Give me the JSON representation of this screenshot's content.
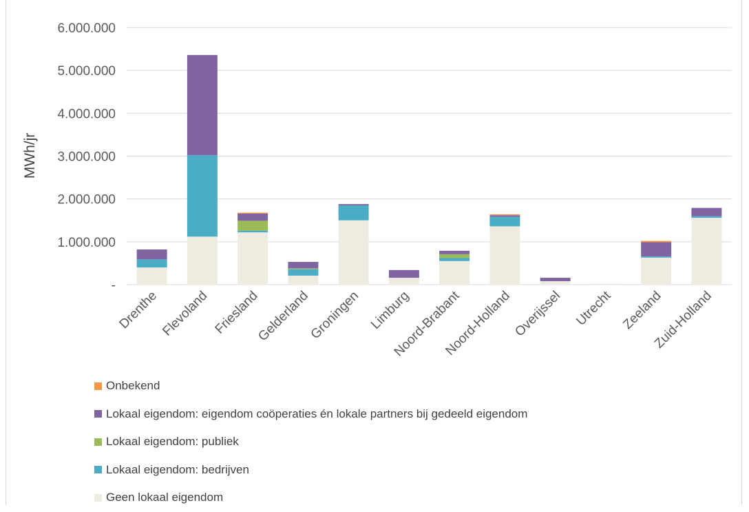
{
  "chart_data": {
    "type": "bar",
    "stacked": true,
    "title": "",
    "xlabel": "",
    "ylabel": "MWh/jr",
    "ylim": [
      0,
      6000000
    ],
    "y_ticks": [
      {
        "value": 0,
        "label": "-"
      },
      {
        "value": 1000000,
        "label": "1.000.000"
      },
      {
        "value": 2000000,
        "label": "2.000.000"
      },
      {
        "value": 3000000,
        "label": "3.000.000"
      },
      {
        "value": 4000000,
        "label": "4.000.000"
      },
      {
        "value": 5000000,
        "label": "5.000.000"
      },
      {
        "value": 6000000,
        "label": "6.000.000"
      }
    ],
    "grid": true,
    "legend_position": "bottom",
    "categories": [
      "Drenthe",
      "Flevoland",
      "Friesland",
      "Gelderland",
      "Groningen",
      "Limburg",
      "Noord-Brabant",
      "Noord-Holland",
      "Overijssel",
      "Utrecht",
      "Zeeland",
      "Zuid-Holland"
    ],
    "series": [
      {
        "name": "Geen lokaal eigendom",
        "color": "#eeece1",
        "values": [
          400000,
          1120000,
          1220000,
          210000,
          1500000,
          160000,
          550000,
          1360000,
          80000,
          20000,
          630000,
          1560000
        ]
      },
      {
        "name": "Lokaal eigendom: bedrijven",
        "color": "#4bacc6",
        "values": [
          190000,
          1900000,
          40000,
          150000,
          350000,
          0,
          70000,
          220000,
          0,
          0,
          30000,
          40000
        ]
      },
      {
        "name": "Lokaal eigendom: publiek",
        "color": "#9bbb59",
        "values": [
          0,
          0,
          230000,
          20000,
          0,
          0,
          90000,
          0,
          0,
          0,
          0,
          0
        ]
      },
      {
        "name": "Lokaal eigendom: eigendom coöperaties én lokale partners bij gedeeld eigendom",
        "color": "#8064a2",
        "values": [
          230000,
          2340000,
          170000,
          150000,
          30000,
          180000,
          80000,
          40000,
          80000,
          0,
          330000,
          190000
        ]
      },
      {
        "name": "Onbekend",
        "color": "#f79646",
        "values": [
          0,
          0,
          20000,
          0,
          0,
          0,
          0,
          20000,
          0,
          0,
          30000,
          0
        ]
      }
    ],
    "legend_order": [
      4,
      3,
      2,
      1,
      0
    ]
  }
}
